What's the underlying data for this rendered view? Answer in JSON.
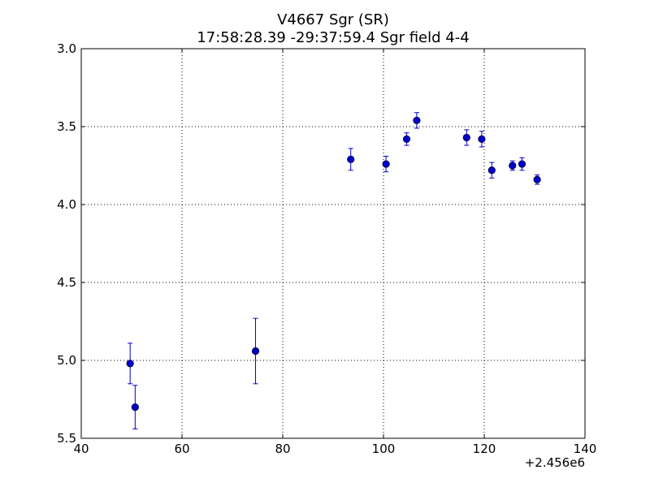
{
  "chart_data": {
    "type": "scatter",
    "title": "V4667 Sgr (SR)",
    "subtitle": "17:58:28.39 -29:37:59.4 Sgr field 4-4",
    "xlabel": "",
    "ylabel": "",
    "x_offset_label": "+2.456e6",
    "xlim": [
      40,
      140
    ],
    "ylim": [
      3.0,
      5.5
    ],
    "y_inverted": true,
    "grid": true,
    "x_ticks": [
      40,
      60,
      80,
      100,
      120,
      140
    ],
    "x_tick_labels": [
      "40",
      "60",
      "80",
      "100",
      "120",
      "140"
    ],
    "y_ticks": [
      3.0,
      3.5,
      4.0,
      4.5,
      5.0,
      5.5
    ],
    "y_tick_labels": [
      "3.0",
      "3.5",
      "4.0",
      "4.5",
      "5.0",
      "5.5"
    ],
    "marker_color": "#0000cc",
    "errorbar_color": "#0000cc",
    "points": [
      {
        "x": 49.7,
        "y": 5.02,
        "err": 0.13
      },
      {
        "x": 50.7,
        "y": 5.3,
        "err": 0.14
      },
      {
        "x": 74.6,
        "y": 4.94,
        "err": 0.21
      },
      {
        "x": 93.5,
        "y": 3.71,
        "err": 0.07
      },
      {
        "x": 100.5,
        "y": 3.74,
        "err": 0.05
      },
      {
        "x": 104.6,
        "y": 3.58,
        "err": 0.04
      },
      {
        "x": 106.6,
        "y": 3.46,
        "err": 0.05
      },
      {
        "x": 116.5,
        "y": 3.57,
        "err": 0.05
      },
      {
        "x": 119.5,
        "y": 3.58,
        "err": 0.05
      },
      {
        "x": 121.5,
        "y": 3.78,
        "err": 0.05
      },
      {
        "x": 125.6,
        "y": 3.75,
        "err": 0.03
      },
      {
        "x": 127.5,
        "y": 3.74,
        "err": 0.04
      },
      {
        "x": 130.5,
        "y": 3.84,
        "err": 0.03
      }
    ]
  }
}
